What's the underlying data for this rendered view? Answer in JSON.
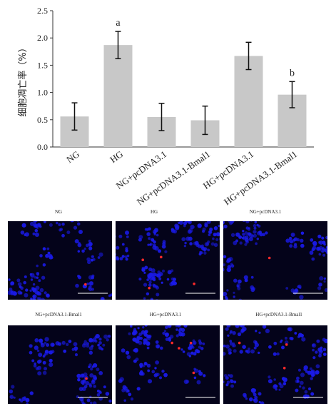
{
  "chart_data": {
    "type": "bar",
    "ylabel": "细胞凋亡率（%）",
    "ylim": [
      0,
      2.5
    ],
    "yticks": [
      "0.0",
      "0.5",
      "1.0",
      "1.5",
      "2.0",
      "2.5"
    ],
    "categories": [
      "NG",
      "HG",
      "NG+pcDNA3.1",
      "NG+pcDNA3.1-Bmal1",
      "HG+pcDNA3.1",
      "HG+pcDNA3.1-Bmal1"
    ],
    "values": [
      0.56,
      1.87,
      0.55,
      0.49,
      1.67,
      0.96
    ],
    "errors": [
      0.25,
      0.25,
      0.25,
      0.26,
      0.25,
      0.24
    ],
    "annotations": [
      "",
      "a",
      "",
      "",
      "",
      "b"
    ],
    "bar_color": "#c8c8c8"
  },
  "images": {
    "labels": [
      "NG",
      "HG",
      "NG+pcDNA3.1",
      "NG+pcDNA3.1-Bmal1",
      "HG+pcDNA3.1",
      "HG+pcDNA3.1-Bmal1"
    ],
    "red_dot_counts": [
      1,
      4,
      1,
      1,
      4,
      3
    ],
    "nuclei_color": "#1a1ae6",
    "apoptotic_color": "#ff2a2a"
  }
}
